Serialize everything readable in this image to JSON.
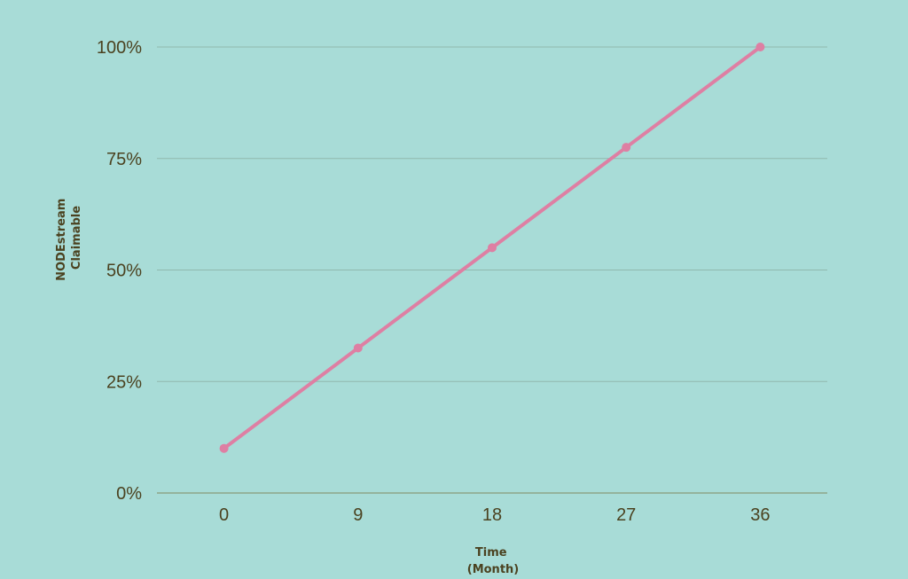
{
  "colors": {
    "background": "#a8dcd7",
    "line": "#de7fa3",
    "grid": "#8fb8ae",
    "axis": "#7f8a62",
    "text": "#4b4220"
  },
  "chart_data": {
    "type": "line",
    "title": "",
    "xlabel": [
      "Time",
      "(Month)"
    ],
    "ylabel": [
      "NODEstream",
      "Claimable"
    ],
    "x": [
      0,
      9,
      18,
      27,
      36
    ],
    "series": [
      {
        "values": [
          10,
          32.5,
          55,
          77.5,
          100
        ]
      }
    ],
    "x_ticks": [
      "0",
      "9",
      "18",
      "27",
      "36"
    ],
    "y_ticks": [
      "0%",
      "25%",
      "50%",
      "75%",
      "100%"
    ],
    "y_tick_values": [
      0,
      25,
      50,
      75,
      100
    ],
    "xlim": [
      -4.5,
      40.5
    ],
    "ylim": [
      0,
      100
    ],
    "grid": "horizontal",
    "markers": true
  }
}
